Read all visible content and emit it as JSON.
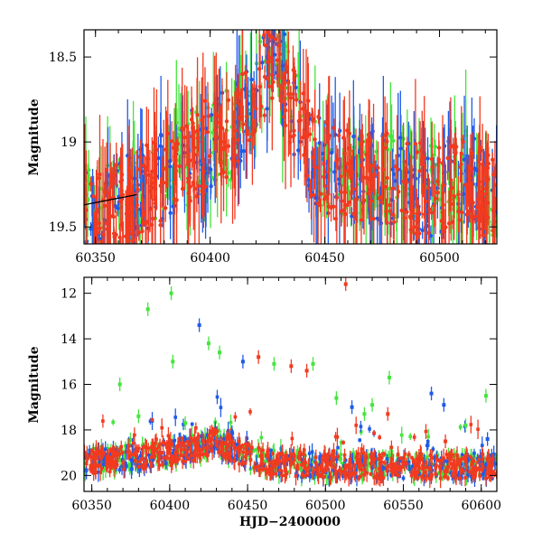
{
  "chart_data": [
    {
      "type": "scatter",
      "panel": "top",
      "ylabel": "Magnitude",
      "xlabel": "",
      "xlim": [
        60345,
        60525
      ],
      "ylim": [
        19.6,
        18.34
      ],
      "y_inverted": true,
      "xticks": [
        60350,
        60400,
        60450,
        60500
      ],
      "yticks": [
        18.5,
        19,
        19.5
      ],
      "ytick_labels": [
        "18.5",
        "19",
        "19.5"
      ],
      "grid": false,
      "colors": {
        "red": "#f23a1f",
        "green": "#44e53d",
        "blue": "#1f5be8"
      },
      "series": [
        {
          "color": "red",
          "baseline_knots": [
            [
              60345,
              19.45
            ],
            [
              60365,
              19.35
            ],
            [
              60380,
              19.2
            ],
            [
              60395,
              19.05
            ],
            [
              60410,
              18.95
            ],
            [
              60420,
              18.7
            ],
            [
              60428,
              18.45
            ],
            [
              60435,
              18.75
            ],
            [
              60445,
              19.1
            ],
            [
              60455,
              19.2
            ],
            [
              60470,
              19.2
            ],
            [
              60485,
              19.25
            ],
            [
              60500,
              19.3
            ],
            [
              60512,
              19.2
            ],
            [
              60525,
              19.35
            ]
          ]
        },
        {
          "color": "green",
          "baseline_knots": [
            [
              60345,
              19.45
            ],
            [
              60365,
              19.35
            ],
            [
              60380,
              19.2
            ],
            [
              60395,
              19.05
            ],
            [
              60410,
              18.95
            ],
            [
              60420,
              18.7
            ],
            [
              60428,
              18.45
            ],
            [
              60435,
              18.75
            ],
            [
              60445,
              19.1
            ],
            [
              60455,
              19.2
            ],
            [
              60470,
              19.2
            ],
            [
              60485,
              19.25
            ],
            [
              60500,
              19.3
            ],
            [
              60512,
              19.2
            ],
            [
              60525,
              19.35
            ]
          ]
        },
        {
          "color": "blue",
          "baseline_knots": [
            [
              60345,
              19.45
            ],
            [
              60365,
              19.35
            ],
            [
              60380,
              19.2
            ],
            [
              60395,
              19.05
            ],
            [
              60410,
              18.95
            ],
            [
              60420,
              18.7
            ],
            [
              60428,
              18.45
            ],
            [
              60435,
              18.75
            ],
            [
              60445,
              19.1
            ],
            [
              60455,
              19.2
            ],
            [
              60470,
              19.2
            ],
            [
              60485,
              19.25
            ],
            [
              60500,
              19.3
            ],
            [
              60512,
              19.2
            ],
            [
              60525,
              19.35
            ]
          ]
        }
      ],
      "trend_line": {
        "color": "#000000",
        "points": [
          [
            60345,
            19.37
          ],
          [
            60368,
            19.31
          ]
        ]
      }
    },
    {
      "type": "scatter",
      "panel": "bottom",
      "ylabel": "Magnitude",
      "xlabel": "HJD−2400000",
      "xlim": [
        60345,
        60610
      ],
      "ylim": [
        20.7,
        11.3
      ],
      "y_inverted": true,
      "xticks": [
        60350,
        60400,
        60450,
        60500,
        60550,
        60600
      ],
      "yticks": [
        12,
        14,
        16,
        18,
        20
      ],
      "ytick_labels": [
        "12",
        "14",
        "16",
        "18",
        "20"
      ],
      "grid": false,
      "colors": {
        "red": "#f23a1f",
        "green": "#44e53d",
        "blue": "#1f5be8"
      },
      "baseline_knots": [
        [
          60345,
          19.4
        ],
        [
          60380,
          19.2
        ],
        [
          60400,
          19.0
        ],
        [
          60420,
          18.8
        ],
        [
          60428,
          18.4
        ],
        [
          60440,
          18.9
        ],
        [
          60460,
          19.4
        ],
        [
          60500,
          19.6
        ],
        [
          60550,
          19.6
        ],
        [
          60600,
          19.6
        ],
        [
          60610,
          19.6
        ]
      ],
      "outliers": [
        {
          "color": "red",
          "points": [
            [
              60513,
              11.6
            ],
            [
              60457,
              14.8
            ],
            [
              60478,
              15.2
            ],
            [
              60488,
              15.4
            ],
            [
              60540,
              17.3
            ],
            [
              60577,
              18.5
            ]
          ]
        },
        {
          "color": "green",
          "points": [
            [
              60401,
              12.0
            ],
            [
              60386,
              12.7
            ],
            [
              60425,
              14.2
            ],
            [
              60432,
              14.6
            ],
            [
              60402,
              15.0
            ],
            [
              60368,
              16.0
            ],
            [
              60467,
              15.1
            ],
            [
              60492,
              15.1
            ],
            [
              60541,
              15.7
            ],
            [
              60603,
              16.5
            ],
            [
              60507,
              16.6
            ],
            [
              60530,
              16.9
            ],
            [
              60525,
              17.3
            ],
            [
              60380,
              17.4
            ],
            [
              60410,
              17.7
            ],
            [
              60590,
              17.8
            ]
          ]
        },
        {
          "color": "blue",
          "points": [
            [
              60419,
              13.4
            ],
            [
              60447,
              15.0
            ],
            [
              60568,
              16.4
            ],
            [
              60517,
              17.0
            ],
            [
              60576,
              16.9
            ],
            [
              60604,
              18.4
            ],
            [
              60440,
              18.1
            ]
          ]
        }
      ]
    }
  ]
}
